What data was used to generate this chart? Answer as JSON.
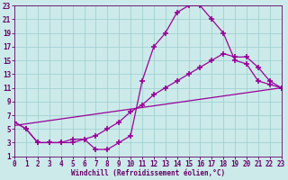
{
  "xlabel": "Windchill (Refroidissement éolien,°C)",
  "bg_color": "#cceaea",
  "grid_color": "#99cccc",
  "line_color": "#990099",
  "tick_color": "#660066",
  "xlim": [
    0,
    23
  ],
  "ylim": [
    1,
    23
  ],
  "xticks": [
    0,
    1,
    2,
    3,
    4,
    5,
    6,
    7,
    8,
    9,
    10,
    11,
    12,
    13,
    14,
    15,
    16,
    17,
    18,
    19,
    20,
    21,
    22,
    23
  ],
  "yticks": [
    1,
    3,
    5,
    7,
    9,
    11,
    13,
    15,
    17,
    19,
    21,
    23
  ],
  "curve1_x": [
    0,
    1,
    2,
    3,
    4,
    5,
    6,
    7,
    8,
    9,
    10,
    11,
    12,
    13,
    14,
    15,
    16,
    17,
    18,
    19,
    20,
    21,
    22,
    23
  ],
  "curve1_y": [
    6,
    5,
    3,
    3,
    3,
    3,
    3.5,
    2,
    2,
    3,
    4,
    12,
    17,
    19,
    22,
    23,
    23,
    21,
    19,
    15,
    14.5,
    12,
    11.5,
    11
  ],
  "curve2_x": [
    0,
    1,
    2,
    3,
    4,
    5,
    6,
    7,
    8,
    9,
    10,
    11,
    12,
    13,
    14,
    15,
    16,
    17,
    18,
    19,
    20,
    21,
    22,
    23
  ],
  "curve2_y": [
    6,
    5,
    3,
    3,
    3,
    3.5,
    3.5,
    4,
    5,
    6,
    7.5,
    8.5,
    10,
    11,
    12,
    13,
    14,
    15,
    16,
    15.5,
    15.5,
    14,
    12,
    11
  ],
  "curve3_x": [
    0,
    23
  ],
  "curve3_y": [
    5.5,
    11
  ],
  "label_fontsize": 5.5,
  "tick_fontsize": 5.5,
  "linewidth": 0.9,
  "markersize": 4,
  "markeredgewidth": 1.2
}
